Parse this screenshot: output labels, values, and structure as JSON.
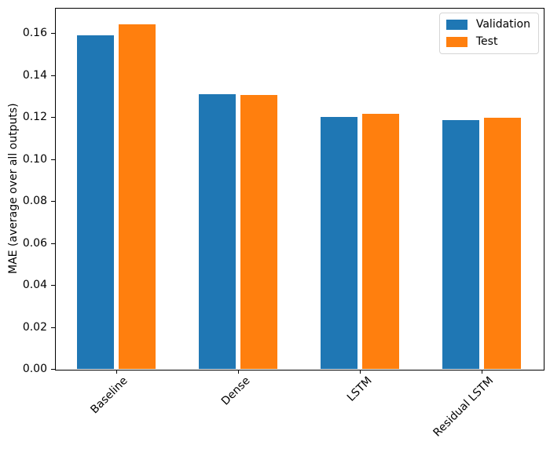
{
  "chart_data": {
    "type": "bar",
    "title": "",
    "xlabel": "",
    "ylabel": "MAE (average over all outputs)",
    "categories": [
      "Baseline",
      "Dense",
      "LSTM",
      "Residual LSTM"
    ],
    "series": [
      {
        "name": "Validation",
        "color": "#1f77b4",
        "values": [
          0.159,
          0.131,
          0.12,
          0.1185
        ]
      },
      {
        "name": "Test",
        "color": "#ff7f0e",
        "values": [
          0.164,
          0.1305,
          0.1215,
          0.1195
        ]
      }
    ],
    "ylim": [
      0,
      0.172
    ],
    "yticks": [
      0.0,
      0.02,
      0.04,
      0.06,
      0.08,
      0.1,
      0.12,
      0.14,
      0.16
    ],
    "ytick_decimals": 2,
    "xtick_rotation_deg": 45,
    "grid": false,
    "legend": {
      "position": "upper right",
      "entries": [
        "Validation",
        "Test"
      ]
    },
    "colors": {
      "axis": "#000000",
      "background": "#ffffff",
      "legend_border": "#d5d5d5"
    }
  }
}
